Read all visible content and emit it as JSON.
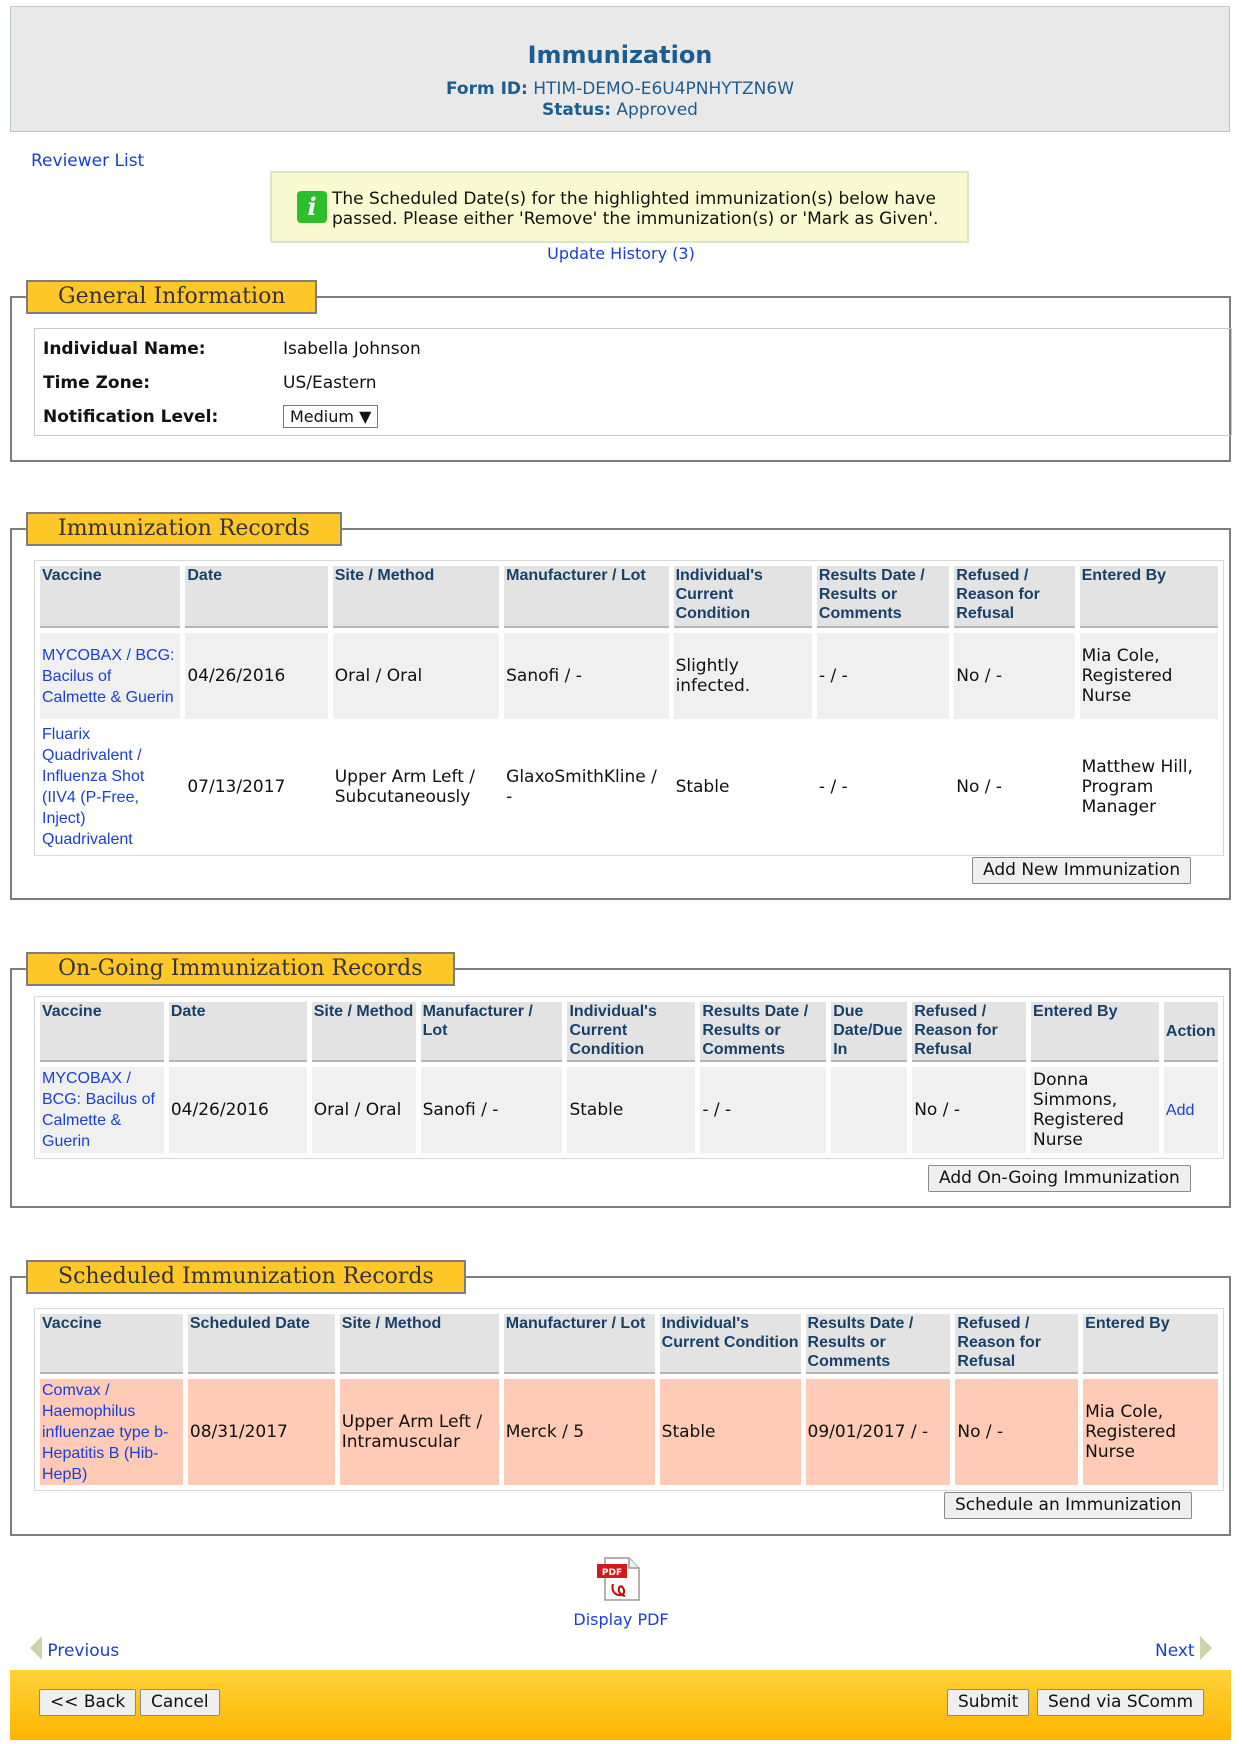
{
  "header": {
    "title": "Immunization",
    "form_id_label": "Form ID:",
    "form_id": "HTIM-DEMO-E6U4PNHYTZN6W",
    "status_label": "Status:",
    "status": "Approved"
  },
  "reviewer_list": "Reviewer List",
  "notice": {
    "icon": "info-icon",
    "message": "The Scheduled Date(s) for the highlighted immunization(s) below have passed. Please either 'Remove' the immunization(s) or 'Mark as Given'."
  },
  "update_history": "Update History (3)",
  "general": {
    "legend": "General Information",
    "name_label": "Individual Name:",
    "name": "Isabella Johnson",
    "tz_label": "Time Zone:",
    "tz": "US/Eastern",
    "notif_label": "Notification Level:",
    "notif": "Medium"
  },
  "records": {
    "legend": "Immunization Records",
    "headers": [
      "Vaccine",
      "Date",
      "Site / Method",
      "Manufacturer / Lot",
      "Individual's Current Condition",
      "Results Date / Results or Comments",
      "Refused / Reason for Refusal",
      "Entered By"
    ],
    "rows": [
      {
        "vaccine": "MYCOBAX / BCG: Bacilus of Calmette & Guerin",
        "date": "04/26/2016",
        "site": "Oral / Oral",
        "manufacturer": "Sanofi / -",
        "condition": "Slightly infected.",
        "results": "- / -",
        "refused": "No / -",
        "entered_by": "Mia Cole, Registered Nurse"
      },
      {
        "vaccine": "Fluarix Quadrivalent / Influenza Shot (IIV4 (P-Free, Inject) Quadrivalent",
        "date": "07/13/2017",
        "site": "Upper Arm Left / Subcutaneously",
        "manufacturer": "GlaxoSmithKline / -",
        "condition": "Stable",
        "results": "- / -",
        "refused": "No / -",
        "entered_by": "Matthew Hill, Program Manager"
      }
    ],
    "button": "Add New Immunization"
  },
  "ongoing": {
    "legend": "On-Going Immunization Records",
    "headers": [
      "Vaccine",
      "Date",
      "Site / Method",
      "Manufacturer / Lot",
      "Individual's Current Condition",
      "Results Date / Results or Comments",
      "Due Date/Due In",
      "Refused / Reason for Refusal",
      "Entered By",
      "Action"
    ],
    "rows": [
      {
        "vaccine": "MYCOBAX / BCG: Bacilus of Calmette & Guerin",
        "date": "04/26/2016",
        "site": "Oral / Oral",
        "manufacturer": "Sanofi / -",
        "condition": "Stable",
        "results": "- / -",
        "due": "",
        "refused": "No / -",
        "entered_by": "Donna Simmons, Registered Nurse",
        "action": "Add"
      }
    ],
    "button": "Add On-Going Immunization"
  },
  "scheduled": {
    "legend": "Scheduled Immunization Records",
    "headers": [
      "Vaccine",
      "Scheduled Date",
      "Site / Method",
      "Manufacturer / Lot",
      "Individual's Current Condition",
      "Results Date / Results or Comments",
      "Refused / Reason for Refusal",
      "Entered By"
    ],
    "rows": [
      {
        "vaccine": "Comvax / Haemophilus influenzae type b-Hepatitis B (Hib-HepB)",
        "date": "08/31/2017",
        "site": "Upper Arm Left / Intramuscular",
        "manufacturer": "Merck / 5",
        "condition": "Stable",
        "results": "09/01/2017 / -",
        "refused": "No / -",
        "entered_by": "Mia Cole, Registered Nurse"
      }
    ],
    "button": "Schedule an Immunization"
  },
  "pdf": {
    "icon": "pdf-icon",
    "badge": "PDF",
    "label": "Display PDF"
  },
  "nav": {
    "previous": "Previous",
    "next": "Next"
  },
  "footer": {
    "back": "<< Back",
    "cancel": "Cancel",
    "submit": "Submit",
    "send": "Send via SComm"
  },
  "colors": {
    "accent": "#ffc727",
    "heading": "#1b5d93",
    "link": "#1a3fd6",
    "overdue": "#ffcbb6"
  }
}
